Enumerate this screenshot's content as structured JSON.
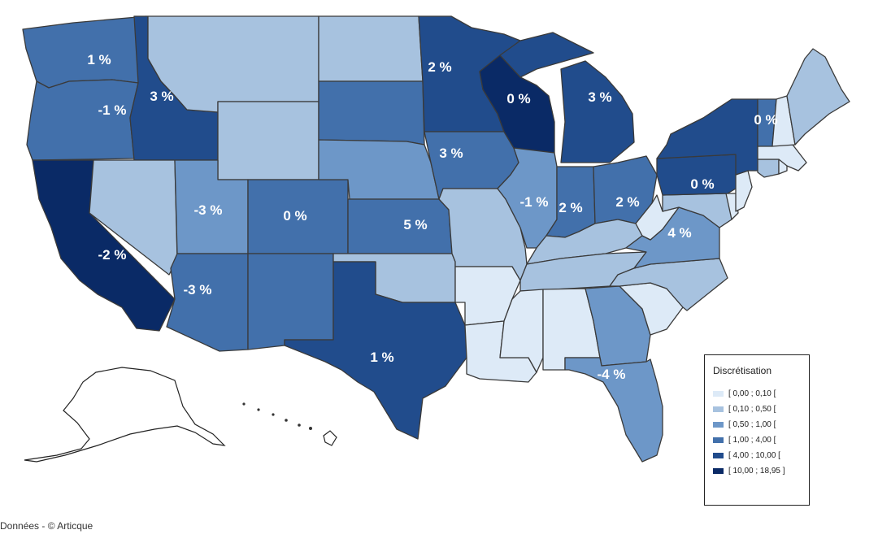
{
  "map": {
    "colors": {
      "c1": "#ddeaf7",
      "c2": "#a7c2df",
      "c3": "#6d97c8",
      "c4": "#4270ab",
      "c5": "#214c8c",
      "c6": "#0a2a66"
    },
    "states": [
      {
        "id": "WA",
        "class": "c4",
        "label": "1 %"
      },
      {
        "id": "OR",
        "class": "c4",
        "label": "-1 %"
      },
      {
        "id": "CA",
        "class": "c6",
        "label": "-2 %"
      },
      {
        "id": "ID",
        "class": "c5",
        "label": "3 %"
      },
      {
        "id": "NV",
        "class": "c2",
        "label": ""
      },
      {
        "id": "MT",
        "class": "c2",
        "label": ""
      },
      {
        "id": "WY",
        "class": "c2",
        "label": ""
      },
      {
        "id": "UT",
        "class": "c3",
        "label": "-3 %"
      },
      {
        "id": "AZ",
        "class": "c4",
        "label": "-3 %"
      },
      {
        "id": "CO",
        "class": "c4",
        "label": "0 %"
      },
      {
        "id": "NM",
        "class": "c4",
        "label": ""
      },
      {
        "id": "ND",
        "class": "c2",
        "label": ""
      },
      {
        "id": "SD",
        "class": "c4",
        "label": ""
      },
      {
        "id": "NE",
        "class": "c3",
        "label": ""
      },
      {
        "id": "KS",
        "class": "c4",
        "label": "5 %"
      },
      {
        "id": "OK",
        "class": "c2",
        "label": ""
      },
      {
        "id": "TX",
        "class": "c5",
        "label": "1 %"
      },
      {
        "id": "MN",
        "class": "c5",
        "label": "2 %"
      },
      {
        "id": "IA",
        "class": "c4",
        "label": "3 %"
      },
      {
        "id": "MO",
        "class": "c2",
        "label": ""
      },
      {
        "id": "AR",
        "class": "c1",
        "label": ""
      },
      {
        "id": "LA",
        "class": "c1",
        "label": ""
      },
      {
        "id": "WI",
        "class": "c6",
        "label": "0 %"
      },
      {
        "id": "MI",
        "class": "c5",
        "label": "3 %"
      },
      {
        "id": "IL",
        "class": "c3",
        "label": "-1 %"
      },
      {
        "id": "IN",
        "class": "c4",
        "label": "2 %"
      },
      {
        "id": "OH",
        "class": "c4",
        "label": "2 %"
      },
      {
        "id": "KY",
        "class": "c2",
        "label": ""
      },
      {
        "id": "TN",
        "class": "c2",
        "label": ""
      },
      {
        "id": "MS",
        "class": "c1",
        "label": ""
      },
      {
        "id": "AL",
        "class": "c1",
        "label": ""
      },
      {
        "id": "GA",
        "class": "c3",
        "label": ""
      },
      {
        "id": "FL",
        "class": "c3",
        "label": "-4 %"
      },
      {
        "id": "SC",
        "class": "c1",
        "label": ""
      },
      {
        "id": "NC",
        "class": "c2",
        "label": ""
      },
      {
        "id": "VA",
        "class": "c3",
        "label": "4 %"
      },
      {
        "id": "WV",
        "class": "c1",
        "label": ""
      },
      {
        "id": "MD",
        "class": "c2",
        "label": ""
      },
      {
        "id": "DE",
        "class": "c1",
        "label": ""
      },
      {
        "id": "PA",
        "class": "c5",
        "label": "0 %"
      },
      {
        "id": "NJ",
        "class": "c1",
        "label": ""
      },
      {
        "id": "NY",
        "class": "c5",
        "label": ""
      },
      {
        "id": "CT",
        "class": "c2",
        "label": ""
      },
      {
        "id": "RI",
        "class": "c1",
        "label": ""
      },
      {
        "id": "MA",
        "class": "c1",
        "label": ""
      },
      {
        "id": "VT",
        "class": "c4",
        "label": "0 %"
      },
      {
        "id": "NH",
        "class": "c1",
        "label": ""
      },
      {
        "id": "ME",
        "class": "c2",
        "label": ""
      }
    ]
  },
  "legend": {
    "title": "Discrétisation",
    "items": [
      {
        "class": "c1",
        "label": "[ 0,00 ; 0,10 ["
      },
      {
        "class": "c2",
        "label": "[ 0,10 ; 0,50 ["
      },
      {
        "class": "c3",
        "label": "[ 0,50 ; 1,00 ["
      },
      {
        "class": "c4",
        "label": "[ 1,00 ; 4,00 ["
      },
      {
        "class": "c5",
        "label": "[ 4,00 ; 10,00 ["
      },
      {
        "class": "c6",
        "label": "[ 10,00 ; 18,95 ]"
      }
    ]
  },
  "credit": "Données - © Articque"
}
